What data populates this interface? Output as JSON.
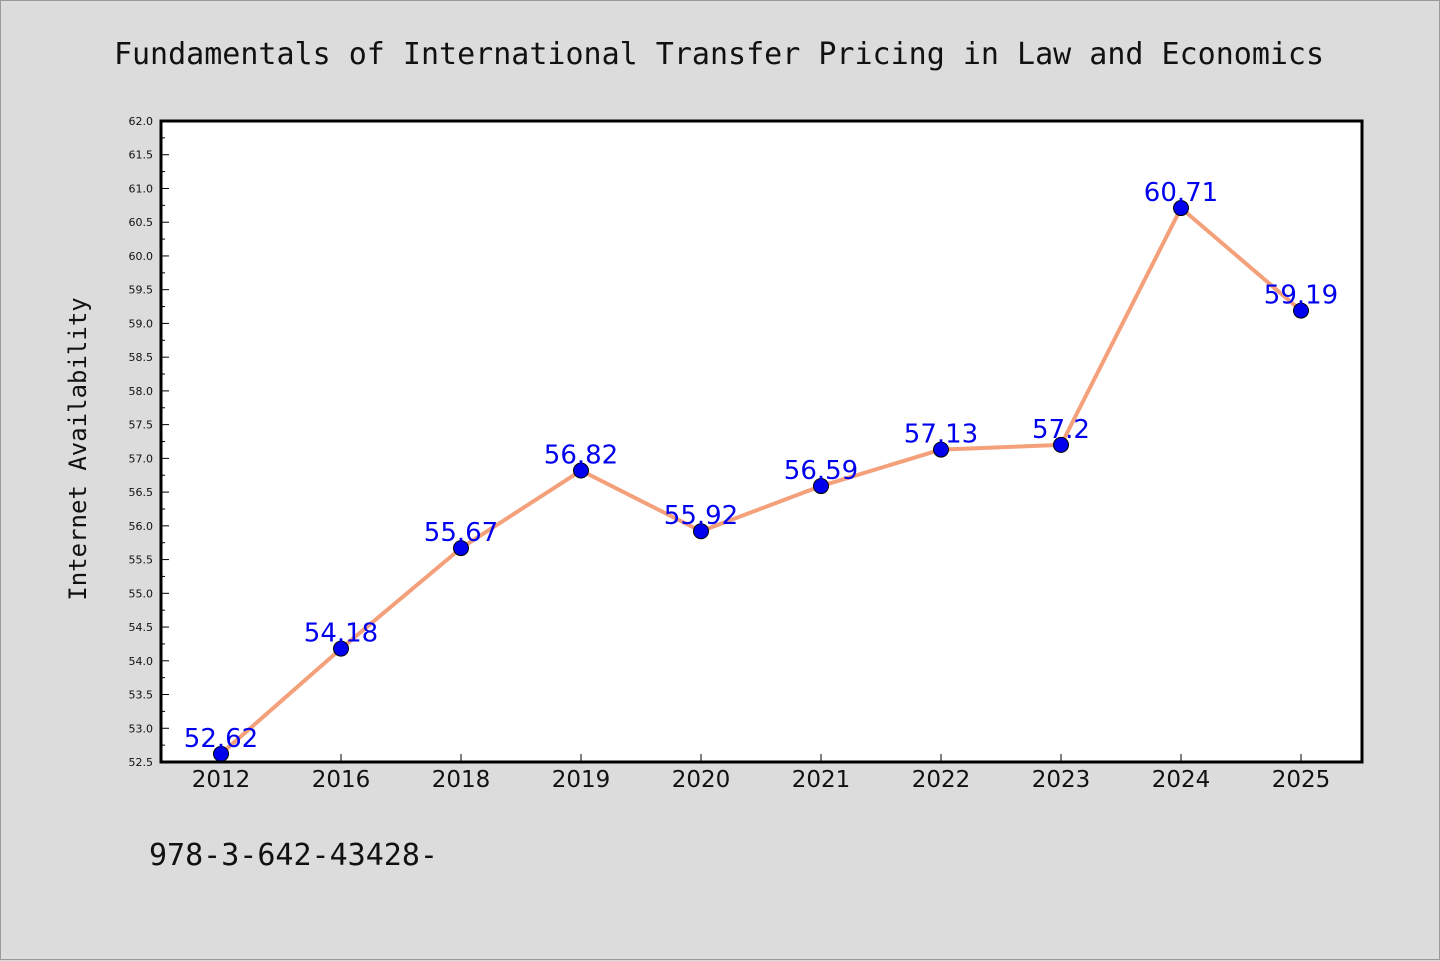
{
  "chart_data": {
    "type": "line",
    "title": "Fundamentals of International Transfer Pricing in Law and Economics",
    "ylabel": "Internet Availability",
    "xlabel": "",
    "categories": [
      "2012",
      "2016",
      "2018",
      "2019",
      "2020",
      "2021",
      "2022",
      "2023",
      "2024",
      "2025"
    ],
    "series": [
      {
        "values": [
          52.62,
          54.18,
          55.67,
          56.82,
          55.92,
          56.59,
          57.13,
          57.2,
          60.71,
          59.19
        ]
      }
    ],
    "data_labels": [
      "52.62",
      "54.18",
      "55.67",
      "56.82",
      "55.92",
      "56.59",
      "57.13",
      "57.2",
      "60.71",
      "59.19"
    ],
    "ylim": [
      52.5,
      62.0
    ],
    "yticks": [
      "52.5",
      "53.0",
      "53.5",
      "54.0",
      "54.5",
      "55.0",
      "55.5",
      "56.0",
      "56.5",
      "57.0",
      "57.5",
      "58.0",
      "58.5",
      "59.0",
      "59.5",
      "60.0",
      "60.5",
      "61.0",
      "61.5",
      "62.0"
    ],
    "grid": false,
    "line_color": "#f4a07a",
    "marker_color": "#0000ee",
    "label_color": "#0000ee"
  },
  "footer": {
    "text": "978-3-642-43428-"
  }
}
